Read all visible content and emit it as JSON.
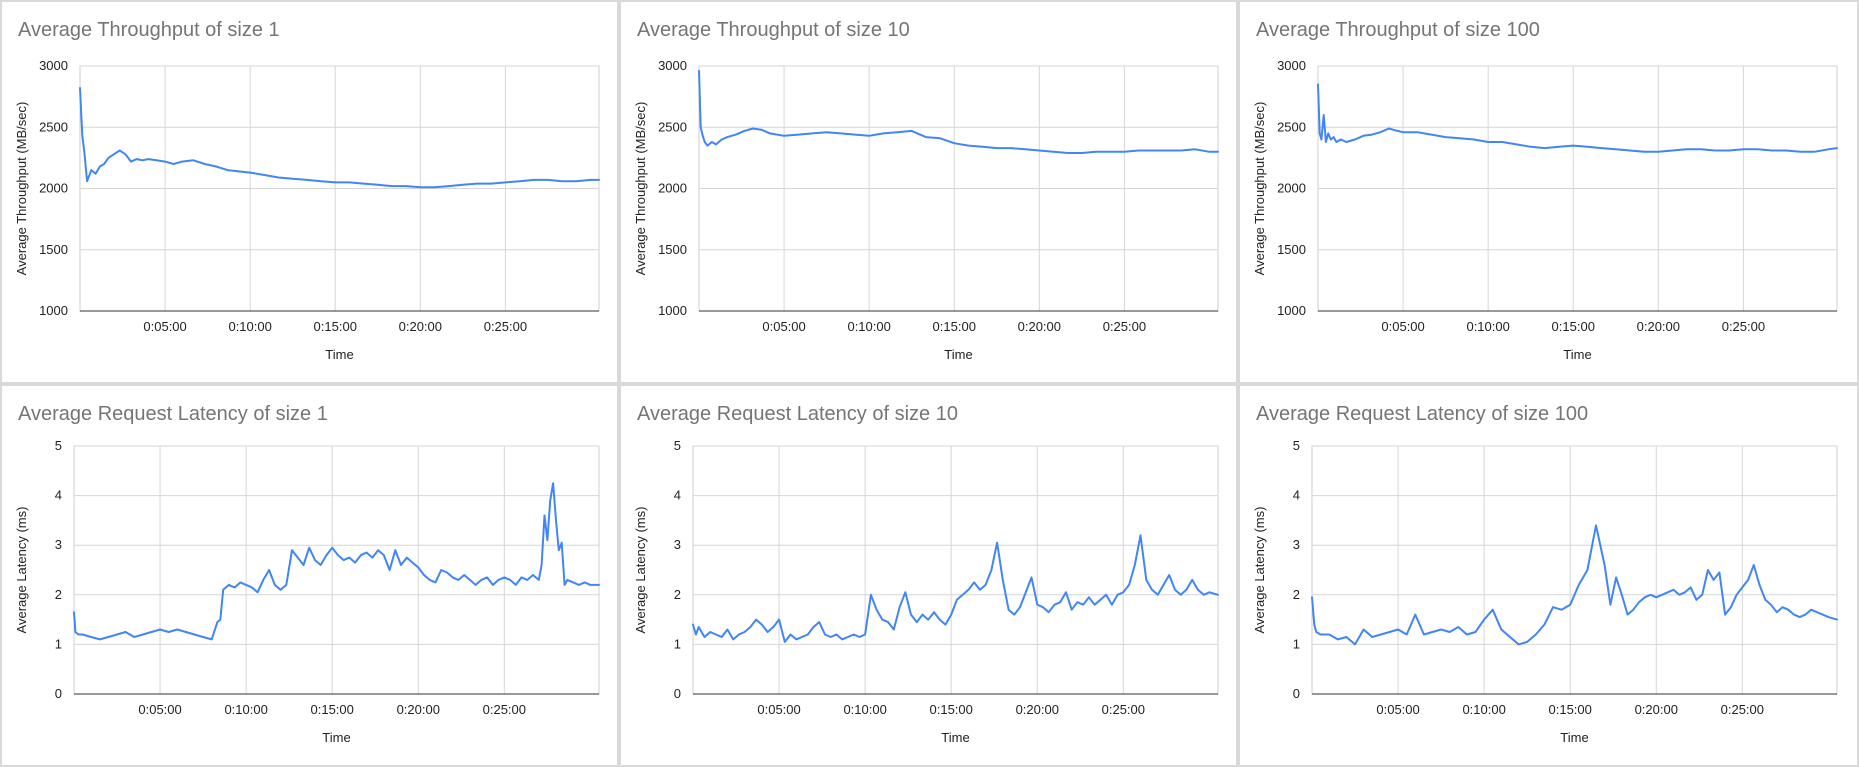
{
  "colors": {
    "series": "#4285f4",
    "title": "#757575"
  },
  "chart_data": [
    {
      "type": "line",
      "title": "Average Throughput of size 1",
      "xlabel": "Time",
      "ylabel": "Average Throughput (MB/sec)",
      "xlim": [
        0,
        1830
      ],
      "ylim": [
        1000,
        3000
      ],
      "yticks": [
        1000,
        1500,
        2000,
        2500,
        3000
      ],
      "xticks": [
        300,
        600,
        900,
        1200,
        1500
      ],
      "xtick_labels": [
        "0:05:00",
        "0:10:00",
        "0:15:00",
        "0:20:00",
        "0:25:00"
      ],
      "grid": true,
      "legend": "none",
      "series": [
        {
          "x": [
            0,
            8,
            15,
            25,
            40,
            55,
            70,
            85,
            100,
            120,
            140,
            160,
            180,
            200,
            220,
            240,
            270,
            300,
            330,
            360,
            400,
            440,
            480,
            520,
            560,
            600,
            650,
            700,
            750,
            800,
            850,
            900,
            950,
            1000,
            1050,
            1100,
            1150,
            1200,
            1250,
            1300,
            1350,
            1400,
            1450,
            1500,
            1550,
            1600,
            1650,
            1700,
            1750,
            1800,
            1830
          ],
          "y": [
            2820,
            2430,
            2300,
            2060,
            2150,
            2120,
            2180,
            2200,
            2250,
            2280,
            2310,
            2280,
            2220,
            2240,
            2230,
            2240,
            2230,
            2220,
            2200,
            2220,
            2230,
            2200,
            2180,
            2150,
            2140,
            2130,
            2110,
            2090,
            2080,
            2070,
            2060,
            2050,
            2050,
            2040,
            2030,
            2020,
            2020,
            2010,
            2010,
            2020,
            2030,
            2040,
            2040,
            2050,
            2060,
            2070,
            2070,
            2060,
            2060,
            2070,
            2070
          ]
        }
      ]
    },
    {
      "type": "line",
      "title": "Average Throughput of size 10",
      "xlabel": "Time",
      "ylabel": "Average Throughput (MB/sec)",
      "xlim": [
        0,
        1830
      ],
      "ylim": [
        1000,
        3000
      ],
      "yticks": [
        1000,
        1500,
        2000,
        2500,
        3000
      ],
      "xticks": [
        300,
        600,
        900,
        1200,
        1500
      ],
      "xtick_labels": [
        "0:05:00",
        "0:10:00",
        "0:15:00",
        "0:20:00",
        "0:25:00"
      ],
      "grid": true,
      "legend": "none",
      "series": [
        {
          "x": [
            0,
            6,
            12,
            20,
            30,
            45,
            60,
            80,
            100,
            130,
            160,
            190,
            220,
            250,
            300,
            350,
            400,
            450,
            500,
            550,
            600,
            650,
            700,
            750,
            800,
            850,
            900,
            950,
            1000,
            1050,
            1100,
            1150,
            1200,
            1250,
            1300,
            1350,
            1400,
            1450,
            1500,
            1550,
            1600,
            1650,
            1700,
            1750,
            1800,
            1830
          ],
          "y": [
            2960,
            2500,
            2440,
            2380,
            2350,
            2380,
            2360,
            2400,
            2420,
            2440,
            2470,
            2490,
            2480,
            2450,
            2430,
            2440,
            2450,
            2460,
            2450,
            2440,
            2430,
            2450,
            2460,
            2470,
            2420,
            2410,
            2370,
            2350,
            2340,
            2330,
            2330,
            2320,
            2310,
            2300,
            2290,
            2290,
            2300,
            2300,
            2300,
            2310,
            2310,
            2310,
            2310,
            2320,
            2300,
            2300
          ]
        }
      ]
    },
    {
      "type": "line",
      "title": "Average Throughput of size 100",
      "xlabel": "Time",
      "ylabel": "Average Throughput (MB/sec)",
      "xlim": [
        0,
        1830
      ],
      "ylim": [
        1000,
        3000
      ],
      "yticks": [
        1000,
        1500,
        2000,
        2500,
        3000
      ],
      "xticks": [
        300,
        600,
        900,
        1200,
        1500
      ],
      "xtick_labels": [
        "0:05:00",
        "0:10:00",
        "0:15:00",
        "0:20:00",
        "0:25:00"
      ],
      "grid": true,
      "legend": "none",
      "series": [
        {
          "x": [
            0,
            6,
            12,
            20,
            28,
            36,
            45,
            55,
            65,
            80,
            100,
            130,
            160,
            190,
            220,
            250,
            280,
            300,
            350,
            400,
            450,
            500,
            550,
            600,
            650,
            700,
            750,
            800,
            850,
            900,
            950,
            1000,
            1050,
            1100,
            1150,
            1200,
            1250,
            1300,
            1350,
            1400,
            1450,
            1500,
            1550,
            1600,
            1650,
            1700,
            1750,
            1800,
            1830
          ],
          "y": [
            2850,
            2450,
            2400,
            2600,
            2380,
            2450,
            2400,
            2420,
            2380,
            2400,
            2380,
            2400,
            2430,
            2440,
            2460,
            2490,
            2470,
            2460,
            2460,
            2440,
            2420,
            2410,
            2400,
            2380,
            2380,
            2360,
            2340,
            2330,
            2340,
            2350,
            2340,
            2330,
            2320,
            2310,
            2300,
            2300,
            2310,
            2320,
            2320,
            2310,
            2310,
            2320,
            2320,
            2310,
            2310,
            2300,
            2300,
            2320,
            2330
          ]
        }
      ]
    },
    {
      "type": "line",
      "title": "Average Request Latency of size 1",
      "xlabel": "Time",
      "ylabel": "Average Latency (ms)",
      "xlim": [
        0,
        1830
      ],
      "ylim": [
        0,
        5
      ],
      "yticks": [
        0,
        1,
        2,
        3,
        4,
        5
      ],
      "xticks": [
        300,
        600,
        900,
        1200,
        1500
      ],
      "xtick_labels": [
        "0:05:00",
        "0:10:00",
        "0:15:00",
        "0:20:00",
        "0:25:00"
      ],
      "grid": true,
      "legend": "none",
      "series": [
        {
          "x": [
            0,
            5,
            15,
            30,
            60,
            90,
            120,
            150,
            180,
            210,
            240,
            270,
            300,
            330,
            360,
            390,
            420,
            450,
            480,
            500,
            510,
            520,
            540,
            560,
            580,
            600,
            620,
            640,
            660,
            680,
            700,
            720,
            740,
            760,
            780,
            800,
            820,
            840,
            860,
            880,
            900,
            920,
            940,
            960,
            980,
            1000,
            1020,
            1040,
            1060,
            1080,
            1100,
            1120,
            1140,
            1160,
            1180,
            1200,
            1220,
            1240,
            1260,
            1280,
            1300,
            1320,
            1340,
            1360,
            1380,
            1400,
            1420,
            1440,
            1460,
            1480,
            1500,
            1520,
            1540,
            1560,
            1580,
            1600,
            1620,
            1630,
            1640,
            1650,
            1660,
            1670,
            1680,
            1690,
            1700,
            1710,
            1720,
            1740,
            1760,
            1780,
            1800,
            1830
          ],
          "y": [
            1.65,
            1.25,
            1.2,
            1.2,
            1.15,
            1.1,
            1.15,
            1.2,
            1.25,
            1.15,
            1.2,
            1.25,
            1.3,
            1.25,
            1.3,
            1.25,
            1.2,
            1.15,
            1.1,
            1.45,
            1.5,
            2.1,
            2.2,
            2.15,
            2.25,
            2.2,
            2.15,
            2.05,
            2.3,
            2.5,
            2.2,
            2.1,
            2.2,
            2.9,
            2.75,
            2.6,
            2.95,
            2.7,
            2.6,
            2.8,
            2.95,
            2.8,
            2.7,
            2.75,
            2.65,
            2.8,
            2.85,
            2.75,
            2.9,
            2.8,
            2.5,
            2.9,
            2.6,
            2.75,
            2.65,
            2.55,
            2.4,
            2.3,
            2.25,
            2.5,
            2.45,
            2.35,
            2.3,
            2.4,
            2.3,
            2.2,
            2.3,
            2.35,
            2.2,
            2.3,
            2.35,
            2.3,
            2.2,
            2.35,
            2.3,
            2.4,
            2.3,
            2.6,
            3.6,
            3.1,
            3.9,
            4.25,
            3.5,
            2.9,
            3.05,
            2.2,
            2.3,
            2.25,
            2.2,
            2.25,
            2.2,
            2.2
          ]
        }
      ]
    },
    {
      "type": "line",
      "title": "Average Request Latency of size 10",
      "xlabel": "Time",
      "ylabel": "Average Latency (ms)",
      "xlim": [
        0,
        1830
      ],
      "ylim": [
        0,
        5
      ],
      "yticks": [
        0,
        1,
        2,
        3,
        4,
        5
      ],
      "xticks": [
        300,
        600,
        900,
        1200,
        1500
      ],
      "xtick_labels": [
        "0:05:00",
        "0:10:00",
        "0:15:00",
        "0:20:00",
        "0:25:00"
      ],
      "grid": true,
      "legend": "none",
      "series": [
        {
          "x": [
            0,
            10,
            20,
            40,
            60,
            80,
            100,
            120,
            140,
            160,
            180,
            200,
            220,
            240,
            260,
            280,
            300,
            320,
            340,
            360,
            380,
            400,
            420,
            440,
            460,
            480,
            500,
            520,
            540,
            560,
            580,
            600,
            620,
            640,
            660,
            680,
            700,
            720,
            740,
            760,
            780,
            800,
            820,
            840,
            860,
            880,
            900,
            920,
            940,
            960,
            980,
            1000,
            1020,
            1040,
            1060,
            1080,
            1100,
            1120,
            1140,
            1160,
            1180,
            1200,
            1220,
            1240,
            1260,
            1280,
            1300,
            1320,
            1340,
            1360,
            1380,
            1400,
            1420,
            1440,
            1460,
            1480,
            1500,
            1520,
            1540,
            1560,
            1580,
            1600,
            1620,
            1640,
            1660,
            1680,
            1700,
            1720,
            1740,
            1760,
            1780,
            1800,
            1830
          ],
          "y": [
            1.4,
            1.2,
            1.35,
            1.15,
            1.25,
            1.2,
            1.15,
            1.3,
            1.1,
            1.2,
            1.25,
            1.35,
            1.5,
            1.4,
            1.25,
            1.35,
            1.5,
            1.05,
            1.2,
            1.1,
            1.15,
            1.2,
            1.35,
            1.45,
            1.2,
            1.15,
            1.2,
            1.1,
            1.15,
            1.2,
            1.15,
            1.2,
            2.0,
            1.7,
            1.5,
            1.45,
            1.3,
            1.75,
            2.05,
            1.6,
            1.45,
            1.6,
            1.5,
            1.65,
            1.5,
            1.4,
            1.6,
            1.9,
            2.0,
            2.1,
            2.25,
            2.1,
            2.2,
            2.5,
            3.05,
            2.3,
            1.7,
            1.6,
            1.75,
            2.05,
            2.35,
            1.8,
            1.75,
            1.65,
            1.8,
            1.85,
            2.05,
            1.7,
            1.85,
            1.8,
            1.95,
            1.8,
            1.9,
            2.0,
            1.8,
            2.0,
            2.05,
            2.2,
            2.6,
            3.2,
            2.3,
            2.1,
            2.0,
            2.2,
            2.4,
            2.1,
            2.0,
            2.1,
            2.3,
            2.1,
            2.0,
            2.05,
            2.0
          ]
        }
      ]
    },
    {
      "type": "line",
      "title": "Average Request Latency of size 100",
      "xlabel": "Time",
      "ylabel": "Average Latency (ms)",
      "xlim": [
        0,
        1830
      ],
      "ylim": [
        0,
        5
      ],
      "yticks": [
        0,
        1,
        2,
        3,
        4,
        5
      ],
      "xticks": [
        300,
        600,
        900,
        1200,
        1500
      ],
      "xtick_labels": [
        "0:05:00",
        "0:10:00",
        "0:15:00",
        "0:20:00",
        "0:25:00"
      ],
      "grid": true,
      "legend": "none",
      "series": [
        {
          "x": [
            0,
            8,
            15,
            30,
            60,
            90,
            120,
            150,
            180,
            210,
            240,
            270,
            300,
            330,
            360,
            390,
            420,
            450,
            480,
            510,
            540,
            570,
            600,
            630,
            660,
            690,
            720,
            750,
            780,
            810,
            840,
            870,
            900,
            930,
            960,
            990,
            1020,
            1040,
            1060,
            1080,
            1100,
            1120,
            1140,
            1160,
            1180,
            1200,
            1220,
            1240,
            1260,
            1280,
            1300,
            1320,
            1340,
            1360,
            1380,
            1400,
            1420,
            1440,
            1460,
            1480,
            1500,
            1520,
            1540,
            1560,
            1580,
            1600,
            1620,
            1640,
            1660,
            1680,
            1700,
            1720,
            1740,
            1760,
            1780,
            1800,
            1830
          ],
          "y": [
            1.95,
            1.4,
            1.25,
            1.2,
            1.2,
            1.1,
            1.15,
            1.0,
            1.3,
            1.15,
            1.2,
            1.25,
            1.3,
            1.2,
            1.6,
            1.2,
            1.25,
            1.3,
            1.25,
            1.35,
            1.2,
            1.25,
            1.5,
            1.7,
            1.3,
            1.15,
            1.0,
            1.05,
            1.2,
            1.4,
            1.75,
            1.7,
            1.8,
            2.2,
            2.5,
            3.4,
            2.6,
            1.8,
            2.35,
            2.0,
            1.6,
            1.7,
            1.85,
            1.95,
            2.0,
            1.95,
            2.0,
            2.05,
            2.1,
            2.0,
            2.05,
            2.15,
            1.9,
            2.0,
            2.5,
            2.3,
            2.45,
            1.6,
            1.75,
            2.0,
            2.15,
            2.3,
            2.6,
            2.2,
            1.9,
            1.8,
            1.65,
            1.75,
            1.7,
            1.6,
            1.55,
            1.6,
            1.7,
            1.65,
            1.6,
            1.55,
            1.5
          ]
        }
      ]
    }
  ]
}
